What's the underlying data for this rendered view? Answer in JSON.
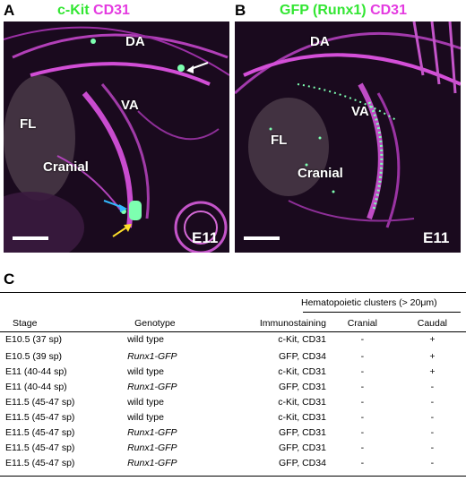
{
  "panel_a": {
    "letter": "A",
    "title_part1": "c-Kit",
    "title_part2": "CD31",
    "labels": {
      "da": "DA",
      "va": "VA",
      "fl": "FL",
      "cranial": "Cranial"
    },
    "stage": "E11"
  },
  "panel_b": {
    "letter": "B",
    "title_part1": "GFP (Runx1)",
    "title_part2": "CD31",
    "labels": {
      "da": "DA",
      "va": "VA",
      "fl": "FL",
      "cranial": "Cranial"
    },
    "stage": "E11"
  },
  "panel_c": {
    "letter": "C",
    "group_header": "Hematopoietic clusters (> 20μm)",
    "columns": {
      "stage": "Stage",
      "genotype": "Genotype",
      "immunostaining": "Immunostaining",
      "cranial": "Cranial",
      "caudal": "Caudal"
    },
    "rows": [
      {
        "stage": "E10.5 (37 sp)",
        "genotype": "wild type",
        "italic": false,
        "immunostaining": "c-Kit, CD31",
        "cranial": "-",
        "caudal": "+"
      },
      {
        "stage": "E10.5 (39 sp)",
        "genotype": "Runx1-GFP",
        "italic": true,
        "immunostaining": "GFP, CD34",
        "cranial": "-",
        "caudal": "+"
      },
      {
        "stage": "E11    (40-44 sp)",
        "genotype": "wild type",
        "italic": false,
        "immunostaining": "c-Kit, CD31",
        "cranial": "-",
        "caudal": "+"
      },
      {
        "stage": "E11    (40-44 sp)",
        "genotype": "Runx1-GFP",
        "italic": true,
        "immunostaining": "GFP, CD31",
        "cranial": "-",
        "caudal": "-"
      },
      {
        "stage": "E11.5 (45-47 sp)",
        "genotype": "wild type",
        "italic": false,
        "immunostaining": "c-Kit, CD31",
        "cranial": "-",
        "caudal": "-"
      },
      {
        "stage": "E11.5 (45-47 sp)",
        "genotype": "wild type",
        "italic": false,
        "immunostaining": "c-Kit, CD31",
        "cranial": "-",
        "caudal": "-"
      },
      {
        "stage": "E11.5 (45-47 sp)",
        "genotype": "Runx1-GFP",
        "italic": true,
        "immunostaining": "GFP, CD31",
        "cranial": "-",
        "caudal": "-"
      },
      {
        "stage": "E11.5 (45-47 sp)",
        "genotype": "Runx1-GFP",
        "italic": true,
        "immunostaining": "GFP, CD31",
        "cranial": "-",
        "caudal": "-"
      },
      {
        "stage": "E11.5 (45-47 sp)",
        "genotype": "Runx1-GFP",
        "italic": true,
        "immunostaining": "GFP, CD34",
        "cranial": "-",
        "caudal": "-"
      }
    ]
  },
  "colors": {
    "green": "#33e633",
    "magenta": "#e43be0",
    "tissue": "#1a0a1e"
  }
}
